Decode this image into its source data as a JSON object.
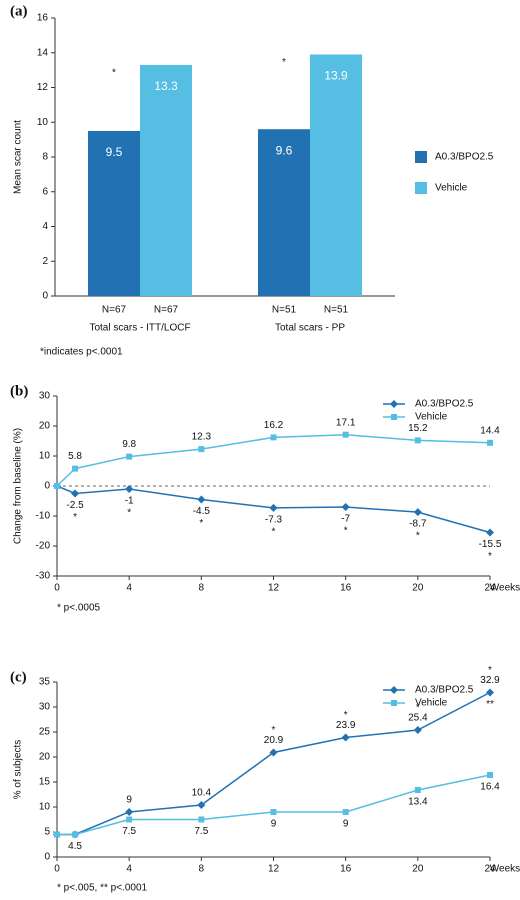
{
  "chart_data": [
    {
      "type": "bar",
      "panel_label": "(a)",
      "ylabel": "Mean scar count",
      "categories": [
        "Total scars - ITT/LOCF",
        "Total scars - PP"
      ],
      "series": [
        {
          "name": "A0.3/BPO2.5",
          "color": "#2271b3",
          "values": [
            9.5,
            9.6
          ],
          "n_labels": [
            "N=67",
            "N=51"
          ],
          "annotations": [
            "*",
            "*"
          ]
        },
        {
          "name": "Vehicle",
          "color": "#56bde3",
          "values": [
            13.3,
            13.9
          ],
          "n_labels": [
            "N=67",
            "N=51"
          ]
        }
      ],
      "ylim": [
        0,
        16
      ],
      "yticks": [
        0,
        2,
        4,
        6,
        8,
        10,
        12,
        14,
        16
      ],
      "footnote": "*indicates p<.0001",
      "legend": "right"
    },
    {
      "type": "line",
      "panel_label": "(b)",
      "ylabel": "Change from baseline (%)",
      "xlabel": "Weeks",
      "x": [
        0,
        1,
        4,
        8,
        12,
        16,
        20,
        24
      ],
      "series": [
        {
          "name": "A0.3/BPO2.5",
          "color": "#2271b3",
          "marker": "diamond",
          "label_position": "below",
          "values": [
            0,
            -2.5,
            -1,
            -4.5,
            -7.3,
            -7,
            -8.7,
            -15.5
          ],
          "value_labels": [
            null,
            "-2.5",
            "-1",
            "-4.5",
            "-7.3",
            "-7",
            "-8.7",
            "-15.5"
          ],
          "annotations_below": [
            null,
            "*",
            "*",
            "*",
            "*",
            "*",
            "*",
            "*"
          ]
        },
        {
          "name": "Vehicle",
          "color": "#56bde3",
          "marker": "square",
          "label_position": "above",
          "values": [
            0,
            5.8,
            9.8,
            12.3,
            16.2,
            17.1,
            15.2,
            14.4
          ],
          "value_labels": [
            null,
            "5.8",
            "9.8",
            "12.3",
            "16.2",
            "17.1",
            "15.2",
            "14.4"
          ]
        }
      ],
      "xlim": [
        0,
        24
      ],
      "xticks": [
        0,
        4,
        8,
        12,
        16,
        20,
        24
      ],
      "ylim": [
        -30,
        30
      ],
      "yticks": [
        -30,
        -20,
        -10,
        0,
        10,
        20,
        30
      ],
      "zero_line": true,
      "footnote": "* p<.0005",
      "legend": "upper right"
    },
    {
      "type": "line",
      "panel_label": "(c)",
      "ylabel": "% of subjects",
      "xlabel": "Weeks",
      "x": [
        0,
        1,
        4,
        8,
        12,
        16,
        20,
        24
      ],
      "series": [
        {
          "name": "A0.3/BPO2.5",
          "color": "#2271b3",
          "marker": "diamond",
          "label_position": "above",
          "values": [
            4.5,
            4.5,
            9,
            10.4,
            20.9,
            23.9,
            25.4,
            32.9
          ],
          "value_labels": [
            null,
            null,
            "9",
            "10.4",
            "20.9",
            "23.9",
            "25.4",
            "32.9"
          ],
          "annotations_above": [
            null,
            null,
            null,
            null,
            "*",
            "*",
            "*",
            "*"
          ],
          "annotations_below": [
            null,
            null,
            null,
            null,
            null,
            null,
            null,
            "**"
          ]
        },
        {
          "name": "Vehicle",
          "color": "#56bde3",
          "marker": "square",
          "label_position": "below",
          "values": [
            4.5,
            4.5,
            7.5,
            7.5,
            9,
            9,
            13.4,
            16.4
          ],
          "value_labels": [
            null,
            "4.5",
            "7.5",
            "7.5",
            "9",
            "9",
            "13.4",
            "16.4"
          ]
        }
      ],
      "xlim": [
        0,
        24
      ],
      "xticks": [
        0,
        4,
        8,
        12,
        16,
        20,
        24
      ],
      "ylim": [
        0,
        35
      ],
      "yticks": [
        0,
        5,
        10,
        15,
        20,
        25,
        30,
        35
      ],
      "footnote": "* p<.005, ** p<.0001",
      "legend": "upper right"
    }
  ]
}
